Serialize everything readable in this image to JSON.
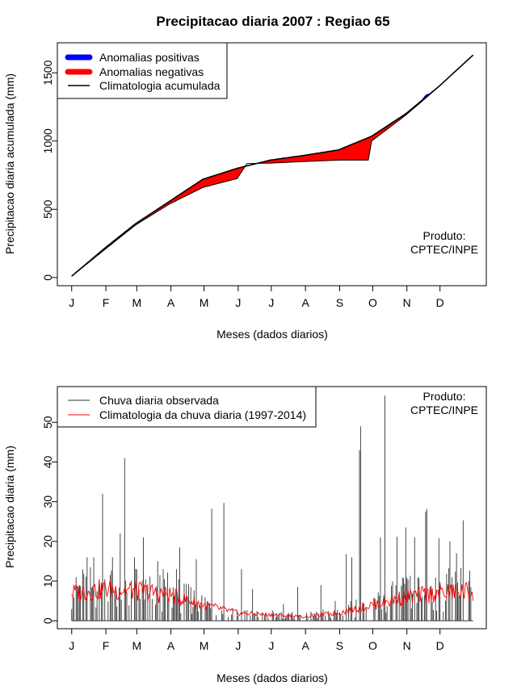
{
  "figure": {
    "title": "Precipitacao diaria 2007 : Regiao 65",
    "months": [
      "J",
      "F",
      "M",
      "A",
      "M",
      "J",
      "J",
      "A",
      "S",
      "O",
      "N",
      "D"
    ],
    "product_line1": "Produto:",
    "product_line2": "CPTEC/INPE"
  },
  "colors": {
    "positive": "#0000ff",
    "negative": "#ff0000",
    "observed": "#333333",
    "climatology_line": "#000000",
    "climatology_daily": "#ff0000"
  },
  "chart_data": [
    {
      "type": "area",
      "id": "accumulated",
      "xlabel": "Meses (dados diarios)",
      "ylabel": "Precipitacao diaria acumulada (mm)",
      "ylim": [
        -60,
        1720
      ],
      "xlim": [
        -12,
        377
      ],
      "yticks": [
        0,
        500,
        1000,
        1500
      ],
      "month_days": [
        1,
        32,
        60,
        91,
        121,
        152,
        182,
        213,
        244,
        274,
        305,
        335
      ],
      "legend": [
        "Anomalias positivas",
        "Anomalias negativas",
        "Climatologia acumulada"
      ],
      "climatology_points": [
        [
          1,
          10
        ],
        [
          31,
          215
        ],
        [
          59,
          395
        ],
        [
          90,
          560
        ],
        [
          120,
          720
        ],
        [
          151,
          800
        ],
        [
          181,
          860
        ],
        [
          212,
          895
        ],
        [
          243,
          935
        ],
        [
          273,
          1035
        ],
        [
          304,
          1200
        ],
        [
          334,
          1400
        ],
        [
          365,
          1630
        ]
      ],
      "observed_points": [
        [
          1,
          10
        ],
        [
          31,
          205
        ],
        [
          59,
          385
        ],
        [
          90,
          540
        ],
        [
          120,
          660
        ],
        [
          151,
          725
        ],
        [
          160,
          835
        ],
        [
          181,
          838
        ],
        [
          212,
          850
        ],
        [
          243,
          860
        ],
        [
          270,
          860
        ],
        [
          273,
          1000
        ],
        [
          304,
          1190
        ],
        [
          320,
          1300
        ],
        [
          334,
          1400
        ],
        [
          365,
          1630
        ]
      ]
    },
    {
      "type": "bar",
      "id": "daily",
      "xlabel": "Meses (dados diarios)",
      "ylabel": "Precipitacao diaria (mm)",
      "ylim": [
        -2,
        59
      ],
      "xlim": [
        -12,
        377
      ],
      "yticks": [
        0,
        10,
        20,
        30,
        40,
        50
      ],
      "month_days": [
        1,
        32,
        60,
        91,
        121,
        152,
        182,
        213,
        244,
        274,
        305,
        335
      ],
      "legend": [
        "Chuva diaria observada",
        "Climatologia da chuva diaria (1997-2014)"
      ],
      "peaks": [
        [
          5,
          11
        ],
        [
          15,
          16
        ],
        [
          21,
          16
        ],
        [
          29,
          32
        ],
        [
          38,
          16
        ],
        [
          45,
          22
        ],
        [
          49,
          41
        ],
        [
          58,
          16
        ],
        [
          66,
          21
        ],
        [
          79,
          15
        ],
        [
          84,
          13
        ],
        [
          96,
          13
        ],
        [
          99,
          18.5
        ],
        [
          114,
          15.5
        ],
        [
          128,
          28.2
        ],
        [
          139,
          29.7
        ],
        [
          155,
          13
        ],
        [
          165,
          8
        ],
        [
          193,
          4.2
        ],
        [
          206,
          8.5
        ],
        [
          227,
          9
        ],
        [
          240,
          5
        ],
        [
          250,
          16.8
        ],
        [
          255,
          16
        ],
        [
          262,
          43
        ],
        [
          263,
          49
        ],
        [
          281,
          21
        ],
        [
          285,
          56.7
        ],
        [
          296,
          21.2
        ],
        [
          304,
          23.5
        ],
        [
          312,
          21
        ],
        [
          322,
          27.5
        ],
        [
          323,
          28.2
        ],
        [
          334,
          20.8
        ],
        [
          344,
          20
        ],
        [
          350,
          17
        ],
        [
          356,
          25.3
        ]
      ],
      "climatology_profile": [
        [
          1,
          7
        ],
        [
          31,
          8
        ],
        [
          59,
          7.5
        ],
        [
          90,
          6.5
        ],
        [
          120,
          4
        ],
        [
          151,
          2
        ],
        [
          181,
          1.5
        ],
        [
          212,
          1
        ],
        [
          243,
          2
        ],
        [
          273,
          4
        ],
        [
          304,
          6
        ],
        [
          334,
          7
        ],
        [
          365,
          7.5
        ]
      ]
    }
  ]
}
